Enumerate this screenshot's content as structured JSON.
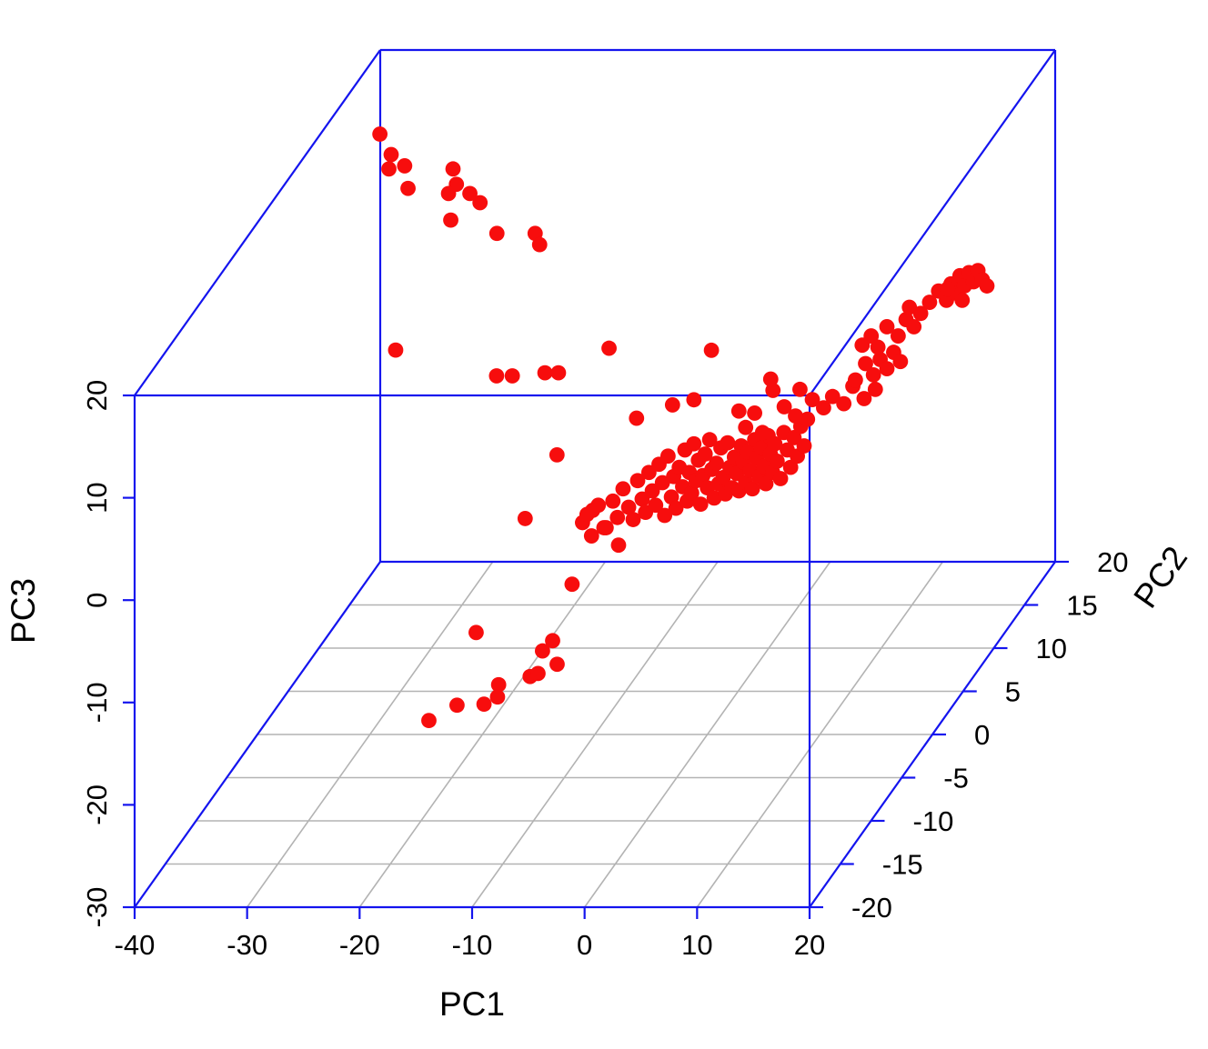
{
  "figure": {
    "background": "#ffffff",
    "kind": "3D PCA scatterplot"
  },
  "chart_data": {
    "type": "scatter",
    "subtype": "scatter3d",
    "title": "",
    "grid": true,
    "legend": "none",
    "point_color": "#f70d0d",
    "box_color": "#1414ee",
    "grid_color": "#b3b3b3",
    "text_color": "#000000",
    "axes": {
      "x": {
        "label": "PC1",
        "range": [
          -40,
          20
        ],
        "ticks": [
          -40,
          -30,
          -20,
          -10,
          0,
          10,
          20
        ]
      },
      "y": {
        "label": "PC2",
        "range": [
          -20,
          20
        ],
        "ticks": [
          -20,
          -15,
          -10,
          -5,
          0,
          5,
          10,
          15,
          20
        ]
      },
      "z": {
        "label": "PC3",
        "range": [
          -30,
          20
        ],
        "ticks": [
          -30,
          -20,
          -10,
          0,
          10,
          20
        ]
      }
    },
    "points": [
      [
        -37.3,
        15,
        16.0
      ],
      [
        -36.3,
        15,
        14.0
      ],
      [
        -36.5,
        15,
        12.6
      ],
      [
        -35.1,
        15,
        12.9
      ],
      [
        -34.8,
        15,
        10.7
      ],
      [
        -30.8,
        15,
        12.6
      ],
      [
        -30.5,
        15,
        11.1
      ],
      [
        -31.2,
        15,
        10.2
      ],
      [
        -29.3,
        15,
        10.2
      ],
      [
        -28.4,
        15,
        9.3
      ],
      [
        -31.0,
        15,
        7.6
      ],
      [
        -26.9,
        15,
        6.3
      ],
      [
        -23.5,
        15,
        6.3
      ],
      [
        -23.1,
        15,
        5.2
      ],
      [
        -35.9,
        15,
        -5.1
      ],
      [
        -24.2,
        10,
        -3.4
      ],
      [
        -22.8,
        10,
        -3.4
      ],
      [
        -19.9,
        10,
        -3.1
      ],
      [
        -18.7,
        10,
        -3.1
      ],
      [
        -14.2,
        10,
        -0.7
      ],
      [
        -5.1,
        10,
        -0.9
      ],
      [
        -16.1,
        5,
        -6.9
      ],
      [
        -16.2,
        0,
        -8.9
      ],
      [
        -9.3,
        -5,
        -11.1
      ],
      [
        -15.1,
        -10,
        -11.6
      ],
      [
        -8.3,
        -10,
        -12.4
      ],
      [
        -9.2,
        -10,
        -13.4
      ],
      [
        -7.9,
        -10,
        -14.7
      ],
      [
        -10.3,
        -10,
        -15.9
      ],
      [
        -13.1,
        -10,
        -16.7
      ],
      [
        -9.6,
        -10,
        -15.6
      ],
      [
        -14.4,
        -10,
        -18.6
      ],
      [
        -16.8,
        -10,
        -18.7
      ],
      [
        -19.3,
        -10,
        -20.2
      ],
      [
        -13.2,
        -10,
        -17.9
      ],
      [
        -11.1,
        0,
        -9.3
      ],
      [
        -10.2,
        0,
        -8.1
      ],
      [
        -9.0,
        0,
        -9.8
      ],
      [
        -8.4,
        0,
        -7.2
      ],
      [
        -8.0,
        0,
        -8.8
      ],
      [
        -7.5,
        0,
        -6.0
      ],
      [
        -7.0,
        0,
        -7.8
      ],
      [
        -6.6,
        0,
        -9.0
      ],
      [
        -6.2,
        0,
        -5.2
      ],
      [
        -5.8,
        0,
        -7.0
      ],
      [
        -5.5,
        0,
        -8.3
      ],
      [
        -5.2,
        0,
        -4.4
      ],
      [
        -4.9,
        0,
        -6.2
      ],
      [
        -4.6,
        0,
        -7.6
      ],
      [
        -4.3,
        0,
        -3.6
      ],
      [
        -4.0,
        0,
        -5.4
      ],
      [
        -3.8,
        0,
        -8.6
      ],
      [
        -3.5,
        0,
        -2.8
      ],
      [
        -3.2,
        0,
        -6.8
      ],
      [
        -3.0,
        0,
        -4.8
      ],
      [
        -2.8,
        0,
        -7.9
      ],
      [
        -2.5,
        0,
        -3.9
      ],
      [
        -2.2,
        0,
        -5.8
      ],
      [
        -2.0,
        0,
        -2.2
      ],
      [
        -1.8,
        0,
        -7.2
      ],
      [
        -1.6,
        0,
        -4.4
      ],
      [
        -1.4,
        0,
        -6.4
      ],
      [
        -1.2,
        0,
        -1.6
      ],
      [
        -1.0,
        0,
        -5.2
      ],
      [
        -0.8,
        0,
        -3.2
      ],
      [
        -0.6,
        0,
        -7.5
      ],
      [
        -0.4,
        0,
        -4.7
      ],
      [
        -0.2,
        0,
        -2.6
      ],
      [
        0.0,
        0,
        -5.9
      ],
      [
        0.2,
        0,
        -1.2
      ],
      [
        0.4,
        0,
        -4.1
      ],
      [
        0.6,
        0,
        -6.9
      ],
      [
        0.8,
        0,
        -3.5
      ],
      [
        1.0,
        0,
        -5.5
      ],
      [
        1.2,
        0,
        -2.0
      ],
      [
        1.4,
        0,
        -4.9
      ],
      [
        1.6,
        0,
        -6.5
      ],
      [
        1.8,
        0,
        -1.5
      ],
      [
        2.0,
        0,
        -3.9
      ],
      [
        2.2,
        0,
        -5.9
      ],
      [
        2.4,
        0,
        -2.9
      ],
      [
        2.6,
        0,
        -4.5
      ],
      [
        2.8,
        0,
        -6.2
      ],
      [
        3.0,
        0,
        -1.8
      ],
      [
        3.2,
        0,
        -3.4
      ],
      [
        3.4,
        0,
        -5.4
      ],
      [
        3.6,
        0,
        -2.4
      ],
      [
        3.8,
        0,
        -4.2
      ],
      [
        4.0,
        0,
        -6.0
      ],
      [
        4.2,
        0,
        -1.2
      ],
      [
        4.4,
        0,
        -3.0
      ],
      [
        4.6,
        0,
        -4.8
      ],
      [
        4.8,
        0,
        -2.0
      ],
      [
        5.0,
        0,
        -3.8
      ],
      [
        5.2,
        0,
        -5.5
      ],
      [
        5.4,
        0,
        -0.8
      ],
      [
        5.6,
        0,
        -2.6
      ],
      [
        5.8,
        0,
        -4.4
      ],
      [
        6.0,
        0,
        -1.6
      ],
      [
        6.2,
        0,
        -3.3
      ],
      [
        6.5,
        0,
        -5.0
      ],
      [
        6.8,
        0,
        -0.5
      ],
      [
        7.1,
        0,
        -2.2
      ],
      [
        7.4,
        0,
        -3.9
      ],
      [
        7.7,
        0,
        -1.0
      ],
      [
        8.0,
        0,
        -2.8
      ],
      [
        8.3,
        0,
        0.1
      ],
      [
        8.6,
        0,
        -1.8
      ],
      [
        8.9,
        0,
        0.8
      ],
      [
        -1.2,
        0,
        2.7
      ],
      [
        -3.1,
        0,
        2.2
      ],
      [
        -6.3,
        0,
        0.9
      ],
      [
        -10.3,
        0,
        -10.6
      ],
      [
        -7.9,
        0,
        -11.5
      ],
      [
        -10.7,
        0,
        -8.5
      ],
      [
        -9.7,
        0,
        -7.6
      ],
      [
        -9.2,
        0,
        -9.8
      ],
      [
        3.4,
        0,
        0.0
      ],
      [
        4.2,
        0,
        1.4
      ],
      [
        4.9,
        0,
        -0.5
      ],
      [
        2.8,
        0,
        1.6
      ],
      [
        3.1,
        5,
        -0.6
      ],
      [
        4.1,
        5,
        -2.2
      ],
      [
        5.1,
        5,
        -3.1
      ],
      [
        5.5,
        5,
        -0.5
      ],
      [
        6.6,
        5,
        -1.5
      ],
      [
        7.6,
        5,
        -2.3
      ],
      [
        8.4,
        5,
        -1.2
      ],
      [
        9.4,
        5,
        -1.9
      ],
      [
        10.2,
        5,
        -0.2
      ],
      [
        11.2,
        5,
        -1.4
      ],
      [
        12.2,
        5,
        -0.5
      ],
      [
        2.9,
        5,
        0.5
      ],
      [
        7.7,
        10,
        -3.8
      ],
      [
        8.6,
        10,
        -2.2
      ],
      [
        9.3,
        10,
        -3.3
      ],
      [
        9.9,
        10,
        -1.8
      ],
      [
        10.5,
        10,
        -2.7
      ],
      [
        11.1,
        10,
        -1.1
      ],
      [
        11.7,
        10,
        -2.0
      ],
      [
        8.3,
        10,
        -0.4
      ],
      [
        9.1,
        10,
        0.5
      ],
      [
        9.7,
        10,
        -0.6
      ],
      [
        12.2,
        10,
        2.1
      ],
      [
        12.9,
        10,
        1.4
      ],
      [
        13.5,
        10,
        2.7
      ],
      [
        12.5,
        10,
        3.3
      ],
      [
        10.5,
        10,
        1.4
      ],
      [
        11.5,
        10,
        0.5
      ],
      [
        13.2,
        12,
        2.1
      ],
      [
        14.0,
        12,
        3.2
      ],
      [
        14.7,
        12,
        2.3
      ],
      [
        15.1,
        12,
        3.9
      ],
      [
        15.5,
        12,
        3.0
      ],
      [
        15.9,
        12,
        4.7
      ],
      [
        16.3,
        12,
        3.7
      ],
      [
        16.7,
        12,
        5.0
      ],
      [
        17.1,
        12,
        4.1
      ],
      [
        17.5,
        12,
        5.2
      ],
      [
        17.9,
        12,
        4.3
      ],
      [
        18.3,
        12,
        3.7
      ],
      [
        16.1,
        12,
        2.3
      ],
      [
        14.8,
        12,
        3.4
      ]
    ]
  }
}
